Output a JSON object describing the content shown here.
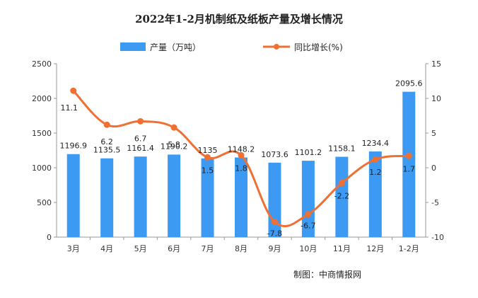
{
  "chart_data": {
    "type": "bar+line",
    "title": "2022年1-2月机制纸及纸板产量及增长情况",
    "categories": [
      "3月",
      "4月",
      "5月",
      "6月",
      "7月",
      "8月",
      "9月",
      "10月",
      "11月",
      "12月",
      "1-2月"
    ],
    "series": [
      {
        "name": "产量（万吨）",
        "type": "bar",
        "axis": "left",
        "color": "#3d9af2",
        "values": [
          1196.9,
          1135.5,
          1161.4,
          1190.2,
          1135,
          1148.2,
          1073.6,
          1101.2,
          1158.1,
          1234.4,
          2095.6
        ],
        "labels": [
          "1196.9",
          "1135.5",
          "1161.4",
          "1190.2",
          "1135",
          "1148.2",
          "1073.6",
          "1101.2",
          "1158.1",
          "1234.4",
          "2095.6"
        ]
      },
      {
        "name": "同比增长(%)",
        "type": "line",
        "axis": "right",
        "color": "#f07033",
        "values": [
          11.1,
          6.2,
          6.7,
          5.8,
          1.5,
          1.8,
          -7.8,
          -6.7,
          -2.2,
          1.2,
          1.7
        ],
        "labels": [
          "11.1",
          "6.2",
          "6.7",
          "5.8",
          "1.5",
          "1.8",
          "-7.8",
          "-6.7",
          "-2.2",
          "1.2",
          "1.7"
        ]
      }
    ],
    "y_left": {
      "min": 0,
      "max": 2500,
      "ticks": [
        0,
        500,
        1000,
        1500,
        2000,
        2500
      ]
    },
    "y_right": {
      "min": -10,
      "max": 15,
      "ticks": [
        -10,
        -5,
        0,
        5,
        10,
        15
      ]
    },
    "legend_position": "top-center",
    "grid": false
  },
  "source": "制图：中商情报网"
}
